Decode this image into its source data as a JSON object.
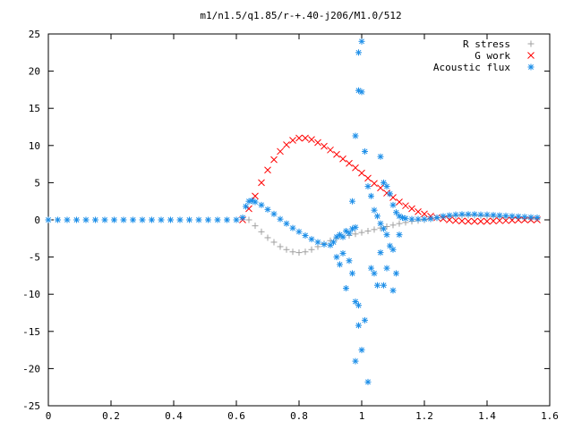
{
  "chart_data": {
    "type": "scatter",
    "title": "m1/n1.5/q1.85/r-+.40-j206/M1.0/512",
    "xlabel": "",
    "ylabel": "",
    "xlim": [
      0,
      1.6
    ],
    "ylim": [
      -25,
      25
    ],
    "x_ticks": [
      "0",
      "0.2",
      "0.4",
      "0.6",
      "0.8",
      "1",
      "1.2",
      "1.4",
      "1.6"
    ],
    "y_ticks": [
      "25",
      "20",
      "15",
      "10",
      "5",
      "0",
      "-5",
      "-10",
      "-15",
      "-20",
      "-25"
    ],
    "grid": false,
    "legend_position": "top-right",
    "series": [
      {
        "name": "R stress",
        "marker": "plus",
        "color": "#a0a0a0",
        "points": [
          [
            0.64,
            0.0
          ],
          [
            0.66,
            -0.8
          ],
          [
            0.68,
            -1.6
          ],
          [
            0.7,
            -2.4
          ],
          [
            0.72,
            -3.0
          ],
          [
            0.74,
            -3.6
          ],
          [
            0.76,
            -4.0
          ],
          [
            0.78,
            -4.3
          ],
          [
            0.8,
            -4.4
          ],
          [
            0.82,
            -4.3
          ],
          [
            0.84,
            -4.0
          ],
          [
            0.86,
            -3.6
          ],
          [
            0.88,
            -3.2
          ],
          [
            0.9,
            -2.8
          ],
          [
            0.92,
            -2.5
          ],
          [
            0.94,
            -2.3
          ],
          [
            0.96,
            -2.1
          ],
          [
            0.98,
            -1.9
          ],
          [
            1.0,
            -1.7
          ],
          [
            1.02,
            -1.5
          ],
          [
            1.04,
            -1.3
          ],
          [
            1.06,
            -1.1
          ],
          [
            1.08,
            -0.9
          ],
          [
            1.1,
            -0.7
          ],
          [
            1.12,
            -0.5
          ],
          [
            1.14,
            -0.35
          ],
          [
            1.16,
            -0.2
          ],
          [
            1.18,
            -0.1
          ],
          [
            1.2,
            0.0
          ],
          [
            1.22,
            0.1
          ],
          [
            1.24,
            0.25
          ],
          [
            1.26,
            0.4
          ],
          [
            1.28,
            0.5
          ],
          [
            1.3,
            0.55
          ],
          [
            1.32,
            0.6
          ],
          [
            1.34,
            0.6
          ],
          [
            1.36,
            0.6
          ],
          [
            1.38,
            0.55
          ],
          [
            1.4,
            0.5
          ],
          [
            1.42,
            0.45
          ],
          [
            1.44,
            0.4
          ],
          [
            1.46,
            0.35
          ],
          [
            1.48,
            0.3
          ],
          [
            1.5,
            0.25
          ],
          [
            1.52,
            0.2
          ],
          [
            1.54,
            0.2
          ],
          [
            1.56,
            0.15
          ]
        ]
      },
      {
        "name": "G work",
        "marker": "cross",
        "color": "#ff0000",
        "points": [
          [
            0.62,
            0.0
          ],
          [
            0.64,
            1.5
          ],
          [
            0.66,
            3.2
          ],
          [
            0.68,
            5.0
          ],
          [
            0.7,
            6.7
          ],
          [
            0.72,
            8.1
          ],
          [
            0.74,
            9.2
          ],
          [
            0.76,
            10.1
          ],
          [
            0.78,
            10.7
          ],
          [
            0.8,
            11.0
          ],
          [
            0.82,
            11.0
          ],
          [
            0.84,
            10.8
          ],
          [
            0.86,
            10.4
          ],
          [
            0.88,
            9.9
          ],
          [
            0.9,
            9.4
          ],
          [
            0.92,
            8.8
          ],
          [
            0.94,
            8.2
          ],
          [
            0.96,
            7.6
          ],
          [
            0.98,
            7.0
          ],
          [
            1.0,
            6.3
          ],
          [
            1.02,
            5.6
          ],
          [
            1.04,
            4.9
          ],
          [
            1.06,
            4.3
          ],
          [
            1.08,
            3.6
          ],
          [
            1.1,
            3.0
          ],
          [
            1.12,
            2.4
          ],
          [
            1.14,
            1.9
          ],
          [
            1.16,
            1.5
          ],
          [
            1.18,
            1.1
          ],
          [
            1.2,
            0.8
          ],
          [
            1.22,
            0.5
          ],
          [
            1.24,
            0.3
          ],
          [
            1.26,
            0.15
          ],
          [
            1.28,
            0.0
          ],
          [
            1.3,
            -0.1
          ],
          [
            1.32,
            -0.15
          ],
          [
            1.34,
            -0.2
          ],
          [
            1.36,
            -0.2
          ],
          [
            1.38,
            -0.2
          ],
          [
            1.4,
            -0.2
          ],
          [
            1.42,
            -0.15
          ],
          [
            1.44,
            -0.1
          ],
          [
            1.46,
            -0.1
          ],
          [
            1.48,
            -0.05
          ],
          [
            1.5,
            0.0
          ],
          [
            1.52,
            0.0
          ],
          [
            1.54,
            0.0
          ],
          [
            1.56,
            0.0
          ]
        ]
      },
      {
        "name": "Acoustic flux",
        "marker": "star",
        "color": "#1e8fe8",
        "points": [
          [
            0.0,
            0.0
          ],
          [
            0.03,
            0.0
          ],
          [
            0.06,
            0.0
          ],
          [
            0.09,
            0.0
          ],
          [
            0.12,
            0.0
          ],
          [
            0.15,
            0.0
          ],
          [
            0.18,
            0.0
          ],
          [
            0.21,
            0.0
          ],
          [
            0.24,
            0.0
          ],
          [
            0.27,
            0.0
          ],
          [
            0.3,
            0.0
          ],
          [
            0.33,
            0.0
          ],
          [
            0.36,
            0.0
          ],
          [
            0.39,
            0.0
          ],
          [
            0.42,
            0.0
          ],
          [
            0.45,
            0.0
          ],
          [
            0.48,
            0.0
          ],
          [
            0.51,
            0.0
          ],
          [
            0.54,
            0.0
          ],
          [
            0.57,
            0.0
          ],
          [
            0.6,
            0.0
          ],
          [
            0.62,
            0.3
          ],
          [
            0.63,
            1.8
          ],
          [
            0.64,
            2.5
          ],
          [
            0.65,
            2.6
          ],
          [
            0.66,
            2.4
          ],
          [
            0.68,
            2.0
          ],
          [
            0.7,
            1.4
          ],
          [
            0.72,
            0.8
          ],
          [
            0.74,
            0.1
          ],
          [
            0.76,
            -0.5
          ],
          [
            0.78,
            -1.1
          ],
          [
            0.8,
            -1.6
          ],
          [
            0.82,
            -2.1
          ],
          [
            0.84,
            -2.6
          ],
          [
            0.86,
            -3.0
          ],
          [
            0.88,
            -3.3
          ],
          [
            0.9,
            -3.4
          ],
          [
            0.91,
            -3.0
          ],
          [
            0.92,
            -2.3
          ],
          [
            0.93,
            -2.0
          ],
          [
            0.94,
            -2.3
          ],
          [
            0.95,
            -1.5
          ],
          [
            0.96,
            -1.8
          ],
          [
            0.97,
            -1.2
          ],
          [
            0.98,
            -1.0
          ],
          [
            0.92,
            -5.0
          ],
          [
            0.93,
            -6.0
          ],
          [
            0.94,
            -4.5
          ],
          [
            0.96,
            -5.5
          ],
          [
            0.95,
            -9.2
          ],
          [
            0.97,
            -7.2
          ],
          [
            0.98,
            -11.0
          ],
          [
            0.99,
            -11.5
          ],
          [
            0.99,
            -14.2
          ],
          [
            0.98,
            -19.0
          ],
          [
            1.0,
            -17.5
          ],
          [
            1.01,
            -13.5
          ],
          [
            1.02,
            -21.8
          ],
          [
            0.97,
            2.5
          ],
          [
            0.98,
            11.3
          ],
          [
            0.99,
            17.4
          ],
          [
            1.0,
            17.2
          ],
          [
            0.99,
            22.5
          ],
          [
            1.0,
            24.0
          ],
          [
            1.01,
            9.2
          ],
          [
            1.02,
            4.5
          ],
          [
            1.03,
            3.2
          ],
          [
            1.04,
            1.3
          ],
          [
            1.05,
            0.5
          ],
          [
            1.06,
            -0.5
          ],
          [
            1.07,
            -1.2
          ],
          [
            1.08,
            -2.0
          ],
          [
            1.03,
            -6.5
          ],
          [
            1.04,
            -7.2
          ],
          [
            1.05,
            -8.8
          ],
          [
            1.06,
            -4.4
          ],
          [
            1.07,
            -8.8
          ],
          [
            1.08,
            -6.5
          ],
          [
            1.09,
            -3.5
          ],
          [
            1.1,
            -4.0
          ],
          [
            1.11,
            -7.2
          ],
          [
            1.12,
            -2.0
          ],
          [
            1.1,
            -9.5
          ],
          [
            1.06,
            8.5
          ],
          [
            1.07,
            5.0
          ],
          [
            1.08,
            4.5
          ],
          [
            1.09,
            3.5
          ],
          [
            1.1,
            2.0
          ],
          [
            1.11,
            1.0
          ],
          [
            1.12,
            0.5
          ],
          [
            1.13,
            0.3
          ],
          [
            1.14,
            0.2
          ],
          [
            1.16,
            0.1
          ],
          [
            1.18,
            0.1
          ],
          [
            1.2,
            0.1
          ],
          [
            1.22,
            0.15
          ],
          [
            1.24,
            0.3
          ],
          [
            1.26,
            0.5
          ],
          [
            1.28,
            0.6
          ],
          [
            1.3,
            0.7
          ],
          [
            1.32,
            0.75
          ],
          [
            1.34,
            0.75
          ],
          [
            1.36,
            0.75
          ],
          [
            1.38,
            0.7
          ],
          [
            1.4,
            0.7
          ],
          [
            1.42,
            0.65
          ],
          [
            1.44,
            0.6
          ],
          [
            1.46,
            0.55
          ],
          [
            1.48,
            0.5
          ],
          [
            1.5,
            0.45
          ],
          [
            1.52,
            0.4
          ],
          [
            1.54,
            0.35
          ],
          [
            1.56,
            0.3
          ]
        ]
      }
    ]
  }
}
